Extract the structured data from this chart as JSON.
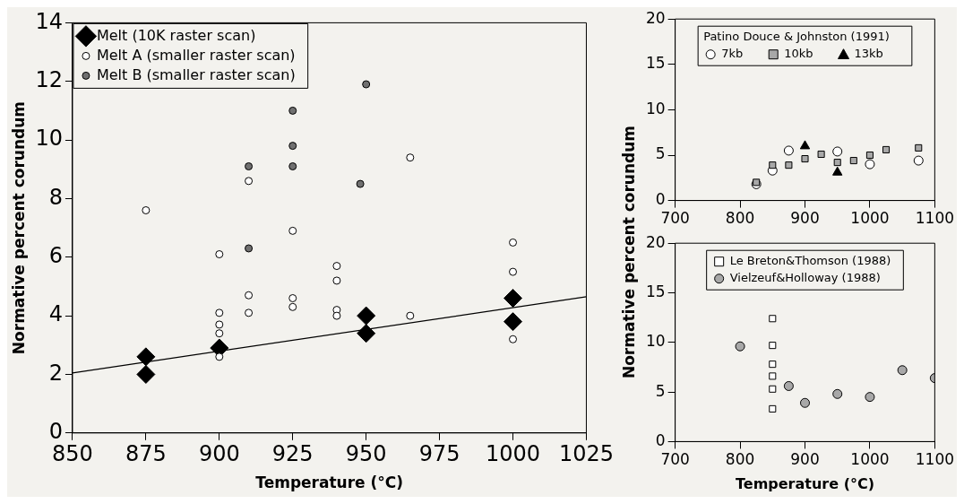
{
  "chart_data": [
    {
      "type": "scatter",
      "xlabel": "Temperature (°C)",
      "ylabel": "Normative percent corundum",
      "xlim": [
        850,
        1025
      ],
      "xticks": [
        850,
        875,
        900,
        925,
        950,
        975,
        1000,
        1025
      ],
      "ylim": [
        0,
        14
      ],
      "yticks": [
        0,
        2,
        4,
        6,
        8,
        10,
        12,
        14
      ],
      "grid": false,
      "legend": "top left",
      "series": [
        {
          "name": "Melt (10K raster scan)",
          "color": "#000000",
          "marker": "diamond",
          "x": [
            875,
            875,
            900,
            950,
            950,
            1000,
            1000
          ],
          "values": [
            2.6,
            2.0,
            2.9,
            4.0,
            3.4,
            4.6,
            3.8
          ]
        },
        {
          "name": "Melt A (smaller raster scan)",
          "color": "#ffffff",
          "marker": "circle",
          "x": [
            875,
            900,
            900,
            900,
            900,
            900,
            910,
            910,
            910,
            925,
            925,
            925,
            940,
            940,
            940,
            940,
            965,
            965,
            1000,
            1000,
            1000
          ],
          "values": [
            7.6,
            6.1,
            4.1,
            3.7,
            3.4,
            2.6,
            8.6,
            4.7,
            4.1,
            6.9,
            4.6,
            4.3,
            5.7,
            5.2,
            4.2,
            4.0,
            9.4,
            4.0,
            6.5,
            5.5,
            3.2
          ]
        },
        {
          "name": "Melt B (smaller raster scan)",
          "color": "#707070",
          "marker": "circle",
          "x": [
            910,
            910,
            925,
            925,
            925,
            950,
            948
          ],
          "values": [
            9.1,
            6.3,
            11.0,
            9.8,
            9.1,
            11.9,
            8.5
          ]
        },
        {
          "type": "line",
          "color": "#000000",
          "marker": "none",
          "x": [
            850,
            1025
          ],
          "values": [
            2.05,
            4.65
          ]
        }
      ]
    },
    {
      "type": "scatter",
      "ylabel": "Normative percent corundum",
      "xlim": [
        700,
        1100
      ],
      "xticks": [
        700,
        800,
        900,
        1000,
        1100
      ],
      "ylim": [
        0,
        20
      ],
      "yticks": [
        0,
        5,
        10,
        15,
        20
      ],
      "grid": false,
      "legend": "top",
      "legend_title": "Patino Douce & Johnston (1991)",
      "series": [
        {
          "name": "7kb",
          "color": "#ffffff",
          "marker": "circle",
          "x": [
            825,
            850,
            875,
            950,
            1000,
            1075
          ],
          "values": [
            1.8,
            3.3,
            5.5,
            5.4,
            4.0,
            4.4
          ]
        },
        {
          "name": "10kb",
          "color": "#a8a8a8",
          "marker": "square",
          "x": [
            825,
            850,
            875,
            900,
            925,
            950,
            975,
            1000,
            1025,
            1075
          ],
          "values": [
            2.0,
            3.9,
            3.9,
            4.6,
            5.1,
            4.2,
            4.4,
            5.0,
            5.6,
            5.8
          ]
        },
        {
          "name": "13kb",
          "color": "#000000",
          "marker": "triangle",
          "x": [
            900,
            950
          ],
          "values": [
            6.0,
            3.1
          ]
        }
      ]
    },
    {
      "type": "scatter",
      "xlabel": "Temperature (°C)",
      "xlim": [
        700,
        1100
      ],
      "xticks": [
        700,
        800,
        900,
        1000,
        1100
      ],
      "ylim": [
        0,
        20
      ],
      "yticks": [
        0,
        5,
        10,
        15,
        20
      ],
      "grid": false,
      "legend": "top",
      "series": [
        {
          "name": "Le Breton&Thomson (1988)",
          "color": "#ffffff",
          "marker": "square",
          "x": [
            850,
            850,
            850,
            850,
            850,
            850
          ],
          "values": [
            12.4,
            9.7,
            7.8,
            6.6,
            5.3,
            3.3
          ]
        },
        {
          "name": "Vielzeuf&Holloway (1988)",
          "color": "#a8a8a8",
          "marker": "circle",
          "x": [
            800,
            875,
            900,
            950,
            1000,
            1050,
            1100
          ],
          "values": [
            9.6,
            5.6,
            3.9,
            4.8,
            4.5,
            7.2,
            6.4
          ]
        }
      ]
    }
  ]
}
